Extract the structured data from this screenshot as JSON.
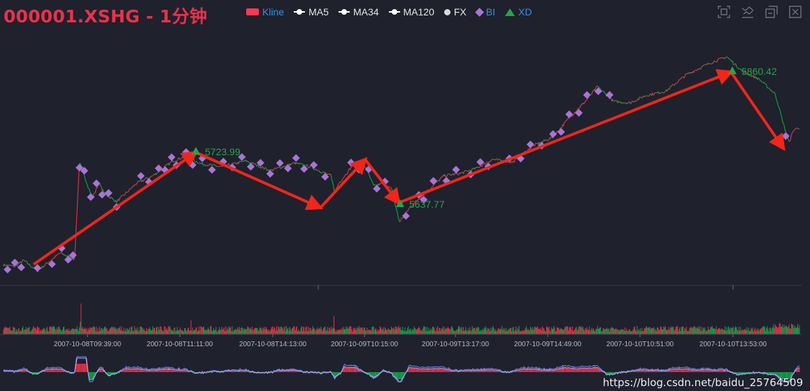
{
  "title": "000001.XSHG - 1分钟",
  "legend": [
    {
      "label": "Kline",
      "marker": "rect",
      "color": "#ff3a52",
      "text_color": "#3a8ee6"
    },
    {
      "label": "MA5",
      "marker": "line-dot",
      "color": "#ffffff",
      "text_color": "#e6e6e6"
    },
    {
      "label": "MA34",
      "marker": "line-dot",
      "color": "#ffffff",
      "text_color": "#e6e6e6"
    },
    {
      "label": "MA120",
      "marker": "line-dot",
      "color": "#ffffff",
      "text_color": "#e6e6e6"
    },
    {
      "label": "FX",
      "marker": "dot",
      "color": "#d9d9d9",
      "text_color": "#e6e6e6"
    },
    {
      "label": "BI",
      "marker": "diamond",
      "color": "#a874d6",
      "text_color": "#3a8ee6"
    },
    {
      "label": "XD",
      "marker": "triangle",
      "color": "#2aa34a",
      "text_color": "#3a8ee6"
    }
  ],
  "toolbox": [
    {
      "name": "zoom-icon"
    },
    {
      "name": "zoom-reset-icon"
    },
    {
      "name": "restore-icon"
    },
    {
      "name": "save-image-icon"
    }
  ],
  "watermark": "https://blog.csdn.net/baidu_25764509",
  "colors": {
    "up": "#e8324a",
    "down": "#14a34c",
    "bi": "#a874d6",
    "xd": "#2aa34a",
    "arrow": "#f0261a",
    "axis": "#3b3e4d",
    "label": "#b8bcc8",
    "macd_dif": "#6d8cf5",
    "macd_dea": "#c89aee"
  },
  "chart_data": {
    "type": "candlestick",
    "xaxis_ticks": [
      "2007-10-08T09:39:00",
      "2007-10-08T11:11:00",
      "2007-10-08T14:13:00",
      "2007-10-09T10:15:00",
      "2007-10-09T13:17:00",
      "2007-10-09T14:49:00",
      "2007-10-10T10:51:00",
      "2007-10-10T13:53:00"
    ],
    "xd": [
      {
        "label": "5723.99",
        "value": 5723.99
      },
      {
        "label": "5637.77",
        "value": 5637.77
      },
      {
        "label": "5860.42",
        "value": 5860.42
      }
    ],
    "bi_count": 63,
    "panels": [
      "kline",
      "volume",
      "macd"
    ]
  }
}
